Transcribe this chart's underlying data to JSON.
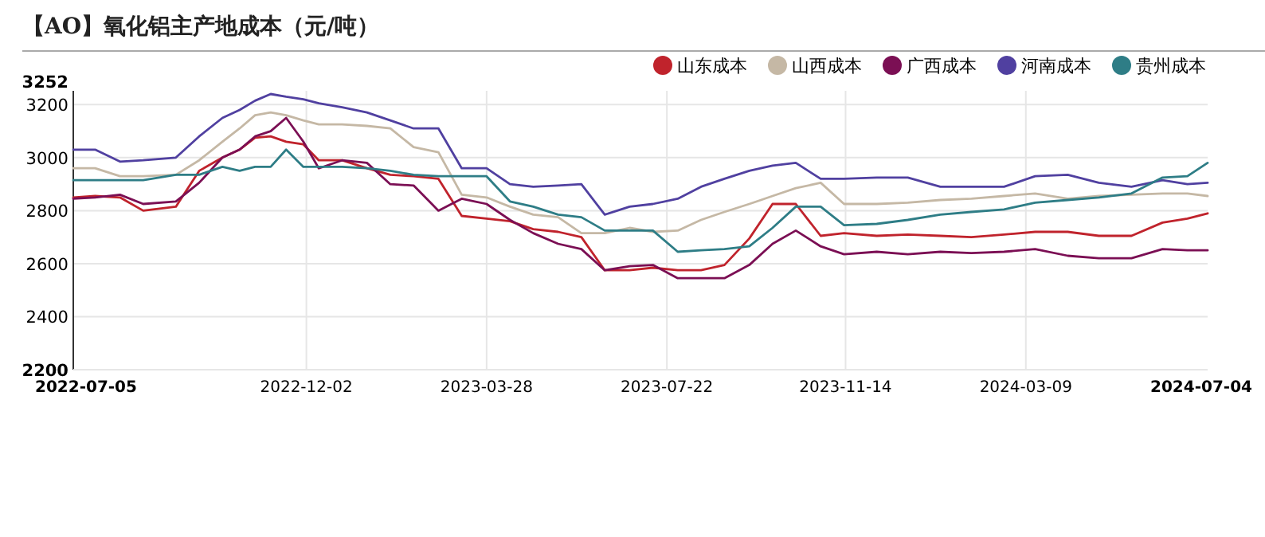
{
  "chart_data": {
    "type": "line",
    "title": "【AO】氧化铝主产地成本（元/吨）",
    "x": [
      "2022-07-05",
      "2022-07-19",
      "2022-08-04",
      "2022-08-19",
      "2022-09-09",
      "2022-09-24",
      "2022-10-09",
      "2022-10-20",
      "2022-10-30",
      "2022-11-09",
      "2022-11-19",
      "2022-11-30",
      "2022-12-10",
      "2022-12-25",
      "2023-01-10",
      "2023-01-25",
      "2023-02-09",
      "2023-02-25",
      "2023-03-12",
      "2023-03-28",
      "2023-04-12",
      "2023-04-27",
      "2023-05-13",
      "2023-05-28",
      "2023-06-12",
      "2023-06-28",
      "2023-07-13",
      "2023-07-29",
      "2023-08-13",
      "2023-08-28",
      "2023-09-13",
      "2023-09-28",
      "2023-10-13",
      "2023-10-29",
      "2023-11-13",
      "2023-12-04",
      "2023-12-24",
      "2024-01-14",
      "2024-02-03",
      "2024-02-24",
      "2024-03-15",
      "2024-04-05",
      "2024-04-25",
      "2024-05-16",
      "2024-06-05",
      "2024-06-21",
      "2024-07-04"
    ],
    "series": [
      {
        "name": "山东成本",
        "color": "#c0232c",
        "values": [
          2850,
          2855,
          2850,
          2800,
          2815,
          2950,
          3000,
          3030,
          3075,
          3080,
          3060,
          3050,
          2990,
          2990,
          2960,
          2935,
          2930,
          2920,
          2780,
          2770,
          2760,
          2730,
          2720,
          2700,
          2575,
          2575,
          2585,
          2575,
          2575,
          2595,
          2695,
          2825,
          2825,
          2705,
          2715,
          2705,
          2710,
          2705,
          2700,
          2710,
          2720,
          2720,
          2705,
          2705,
          2755,
          2770,
          2790
        ]
      },
      {
        "name": "山西成本",
        "color": "#c5b8a5",
        "values": [
          2960,
          2960,
          2930,
          2930,
          2935,
          2990,
          3060,
          3110,
          3160,
          3170,
          3160,
          3140,
          3125,
          3125,
          3120,
          3110,
          3040,
          3020,
          2860,
          2850,
          2815,
          2785,
          2775,
          2715,
          2715,
          2735,
          2720,
          2725,
          2765,
          2795,
          2825,
          2855,
          2885,
          2905,
          2825,
          2825,
          2830,
          2840,
          2845,
          2855,
          2865,
          2845,
          2855,
          2860,
          2865,
          2865,
          2855
        ]
      },
      {
        "name": "广西成本",
        "color": "#7b0f54",
        "values": [
          2845,
          2850,
          2860,
          2825,
          2835,
          2905,
          3000,
          3030,
          3080,
          3100,
          3150,
          3060,
          2960,
          2990,
          2980,
          2900,
          2895,
          2800,
          2845,
          2825,
          2765,
          2715,
          2675,
          2655,
          2575,
          2590,
          2595,
          2545,
          2545,
          2545,
          2595,
          2675,
          2725,
          2665,
          2635,
          2645,
          2635,
          2645,
          2640,
          2645,
          2655,
          2630,
          2620,
          2620,
          2655,
          2650,
          2650
        ]
      },
      {
        "name": "河南成本",
        "color": "#5040a0",
        "values": [
          3030,
          3030,
          2985,
          2990,
          3000,
          3080,
          3150,
          3180,
          3215,
          3240,
          3230,
          3220,
          3205,
          3190,
          3170,
          3140,
          3110,
          3110,
          2960,
          2960,
          2900,
          2890,
          2895,
          2900,
          2785,
          2815,
          2825,
          2845,
          2890,
          2920,
          2950,
          2970,
          2980,
          2920,
          2920,
          2925,
          2925,
          2890,
          2890,
          2890,
          2930,
          2935,
          2905,
          2890,
          2915,
          2900,
          2905
        ]
      },
      {
        "name": "贵州成本",
        "color": "#2e7d86",
        "values": [
          2915,
          2915,
          2915,
          2915,
          2935,
          2935,
          2965,
          2950,
          2965,
          2965,
          3030,
          2965,
          2965,
          2965,
          2960,
          2950,
          2935,
          2930,
          2930,
          2930,
          2835,
          2815,
          2785,
          2775,
          2725,
          2725,
          2725,
          2645,
          2650,
          2655,
          2665,
          2735,
          2815,
          2815,
          2745,
          2750,
          2765,
          2785,
          2795,
          2805,
          2830,
          2840,
          2850,
          2865,
          2925,
          2930,
          2980
        ]
      }
    ],
    "xlim": [
      "2022-07-05",
      "2024-07-04"
    ],
    "xticks": [
      "2022-07-05",
      "2022-12-02",
      "2023-03-28",
      "2023-07-22",
      "2023-11-14",
      "2024-03-09",
      "2024-07-04"
    ],
    "ylim": [
      2200,
      3252
    ],
    "yticks": [
      2200,
      2400,
      2600,
      2800,
      3000,
      3200,
      3252
    ],
    "grid": true,
    "legend": "top right",
    "marker": "none",
    "line_style": "solid"
  }
}
